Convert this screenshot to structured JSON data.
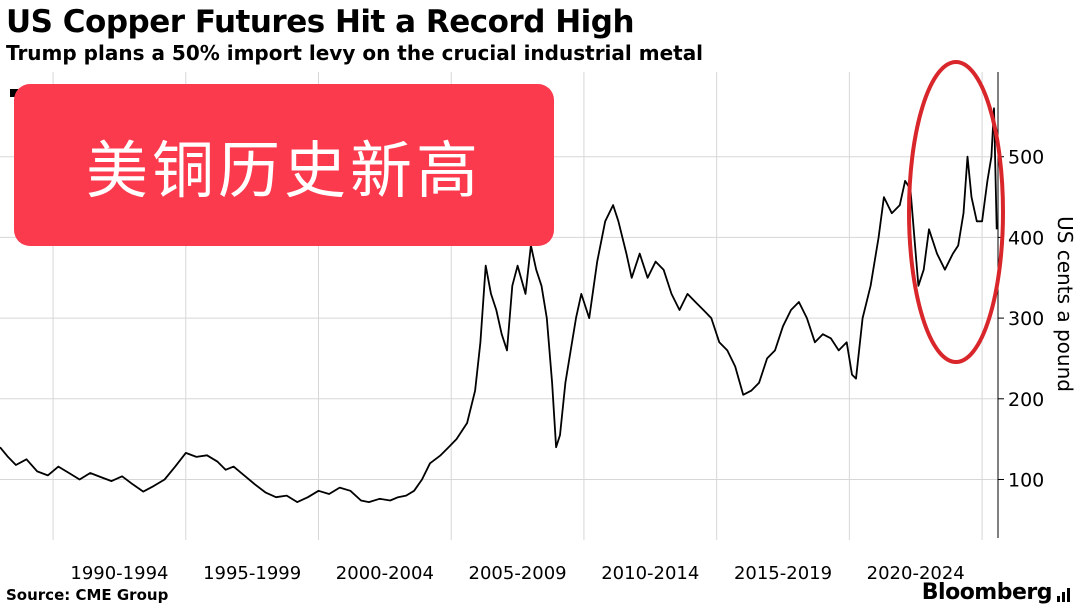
{
  "header": {
    "title": "US Copper Futures Hit a Record High",
    "subtitle": "Trump plans a 50% import levy on the crucial industrial metal"
  },
  "overlay": {
    "text": "美铜历史新高",
    "color": "#fb3a4d"
  },
  "footer": {
    "source": "Source: CME Group",
    "brand": "Bloomberg",
    "brand_icon": "bar-chart-icon"
  },
  "colors": {
    "line": "#000000",
    "grid": "#d7d7d7",
    "highlight_ellipse": "#d9262b"
  },
  "chart_data": {
    "type": "line",
    "title": "US Copper Futures Hit a Record High",
    "subtitle": "Trump plans a 50% import levy on the crucial industrial metal",
    "xlabel": "",
    "ylabel": "US cents a pound",
    "x_tick_labels": [
      "1990-1994",
      "1995-1999",
      "2000-2004",
      "2005-2009",
      "2010-2014",
      "2015-2019",
      "2020-2024"
    ],
    "y_ticks": [
      100,
      200,
      300,
      400,
      500
    ],
    "xlim": [
      1988.0,
      2025.6
    ],
    "ylim": [
      25,
      605
    ],
    "grid": true,
    "y_axis_side": "right",
    "series": [
      {
        "x": [
          1988.0,
          1988.3,
          1988.6,
          1989.0,
          1989.4,
          1989.8,
          1990.2,
          1990.6,
          1991.0,
          1991.4,
          1991.8,
          1992.2,
          1992.6,
          1993.0,
          1993.4,
          1993.8,
          1994.2,
          1994.6,
          1995.0,
          1995.4,
          1995.8,
          1996.2,
          1996.5,
          1996.8,
          1997.2,
          1997.6,
          1998.0,
          1998.4,
          1998.8,
          1999.2,
          1999.6,
          2000.0,
          2000.4,
          2000.8,
          2001.2,
          2001.6,
          2001.9,
          2002.3,
          2002.7,
          2003.0,
          2003.3,
          2003.6,
          2003.9,
          2004.2,
          2004.6,
          2004.9,
          2005.2,
          2005.6,
          2005.9,
          2006.1,
          2006.3,
          2006.5,
          2006.7,
          2006.9,
          2007.1,
          2007.3,
          2007.5,
          2007.8,
          2008.0,
          2008.2,
          2008.4,
          2008.6,
          2008.8,
          2008.95,
          2009.1,
          2009.3,
          2009.5,
          2009.7,
          2009.9,
          2010.2,
          2010.5,
          2010.8,
          2011.1,
          2011.3,
          2011.6,
          2011.8,
          2012.1,
          2012.4,
          2012.7,
          2013.0,
          2013.3,
          2013.6,
          2013.9,
          2014.2,
          2014.5,
          2014.8,
          2015.1,
          2015.4,
          2015.7,
          2016.0,
          2016.3,
          2016.6,
          2016.9,
          2017.2,
          2017.5,
          2017.8,
          2018.1,
          2018.4,
          2018.7,
          2019.0,
          2019.3,
          2019.6,
          2019.9,
          2020.1,
          2020.25,
          2020.5,
          2020.8,
          2021.1,
          2021.3,
          2021.6,
          2021.9,
          2022.1,
          2022.3,
          2022.5,
          2022.6,
          2022.8,
          2023.0,
          2023.3,
          2023.6,
          2023.9,
          2024.1,
          2024.3,
          2024.45,
          2024.6,
          2024.8,
          2025.0,
          2025.2,
          2025.35,
          2025.45,
          2025.55
        ],
        "y": [
          140,
          128,
          118,
          125,
          110,
          105,
          116,
          108,
          100,
          108,
          103,
          98,
          104,
          94,
          85,
          92,
          100,
          116,
          133,
          128,
          130,
          122,
          112,
          116,
          105,
          94,
          84,
          78,
          80,
          72,
          78,
          86,
          82,
          90,
          86,
          74,
          72,
          76,
          74,
          78,
          80,
          86,
          100,
          120,
          130,
          140,
          150,
          170,
          210,
          270,
          365,
          330,
          310,
          280,
          260,
          340,
          365,
          330,
          390,
          360,
          340,
          300,
          220,
          140,
          155,
          220,
          260,
          300,
          330,
          300,
          370,
          420,
          440,
          420,
          380,
          350,
          380,
          350,
          370,
          360,
          330,
          310,
          330,
          320,
          310,
          300,
          270,
          260,
          240,
          205,
          210,
          220,
          250,
          260,
          290,
          310,
          320,
          300,
          270,
          280,
          275,
          260,
          270,
          230,
          225,
          300,
          340,
          400,
          450,
          430,
          440,
          470,
          460,
          380,
          340,
          360,
          410,
          380,
          360,
          380,
          390,
          430,
          500,
          450,
          420,
          420,
          470,
          500,
          560,
          410
        ]
      }
    ]
  }
}
